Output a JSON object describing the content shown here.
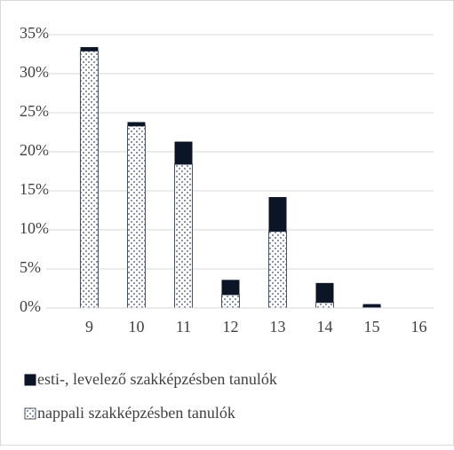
{
  "chart_data": {
    "type": "stacked_bar",
    "categories": [
      "9",
      "10",
      "11",
      "12",
      "13",
      "14",
      "15",
      "16"
    ],
    "series": [
      {
        "name": "nappali szakképzésben tanulók",
        "color": "#44546a",
        "values": [
          32.9,
          23.3,
          18.4,
          1.7,
          9.8,
          0.7,
          0.1,
          0
        ]
      },
      {
        "name": "esti-, levelező szakképzésben tanulók",
        "color": "#0b1526",
        "values": [
          0.5,
          0.5,
          2.9,
          1.9,
          4.4,
          2.5,
          0.4,
          0
        ]
      }
    ],
    "ylim": [
      0,
      35
    ],
    "yticks": [
      {
        "value": 0,
        "label": "0%"
      },
      {
        "value": 5,
        "label": "5%"
      },
      {
        "value": 10,
        "label": "10%"
      },
      {
        "value": 15,
        "label": "15%"
      },
      {
        "value": 20,
        "label": "20%"
      },
      {
        "value": 25,
        "label": "25%"
      },
      {
        "value": 30,
        "label": "30%"
      },
      {
        "value": 35,
        "label": "35%"
      }
    ],
    "grid": true
  }
}
